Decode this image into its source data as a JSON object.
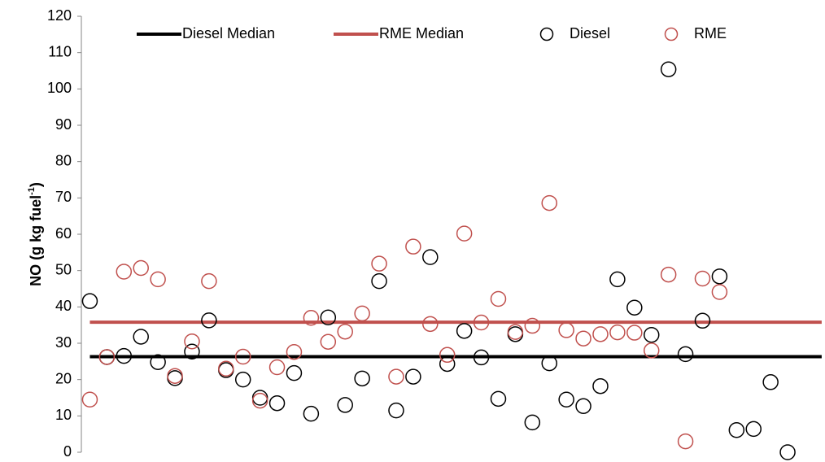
{
  "chart_data": {
    "type": "scatter",
    "ylabel_parts": [
      "NO (g kg fuel",
      "-1",
      ")"
    ],
    "x": [
      1,
      2,
      3,
      4,
      5,
      6,
      7,
      8,
      9,
      10,
      11,
      12,
      13,
      14,
      15,
      16,
      17,
      18,
      19,
      20,
      21,
      22,
      23,
      24,
      25,
      26,
      27,
      28,
      29,
      30,
      31,
      32,
      33,
      34,
      35,
      36,
      37,
      38,
      39,
      40,
      41,
      42
    ],
    "series": [
      {
        "name": "Diesel Median",
        "mode": "line",
        "color": "#000000",
        "x": [
          1,
          44
        ],
        "values": [
          26.3,
          26.3
        ]
      },
      {
        "name": "RME Median",
        "mode": "line",
        "color": "#c0504d",
        "x": [
          1,
          44
        ],
        "values": [
          35.8,
          35.8
        ]
      },
      {
        "name": "Diesel",
        "mode": "markers",
        "color": "#000000",
        "values": [
          41.6,
          26.2,
          26.5,
          31.8,
          24.8,
          20.4,
          27.7,
          36.3,
          22.6,
          20,
          15,
          13.5,
          21.8,
          10.6,
          37.1,
          13,
          20.3,
          47.1,
          11.5,
          20.8,
          53.7,
          24.3,
          33.4,
          26.1,
          14.7,
          32.5,
          8.2,
          24.5,
          14.5,
          12.7,
          18.2,
          47.6,
          39.8,
          32.3,
          105.4,
          27,
          36.2,
          48.4,
          6.1,
          6.4,
          19.3,
          0
        ]
      },
      {
        "name": "RME",
        "mode": "markers",
        "color": "#c0504d",
        "values": [
          14.5,
          26.2,
          49.7,
          50.7,
          47.6,
          21,
          30.5,
          47.1,
          23,
          26.3,
          14.2,
          23.4,
          27.6,
          37,
          30.4,
          33.2,
          38.2,
          51.9,
          20.8,
          56.6,
          35.3,
          26.8,
          60.2,
          35.7,
          42.2,
          33.1,
          34.8,
          68.6,
          33.6,
          31.3,
          32.5,
          33,
          32.9,
          28,
          48.9,
          3,
          47.8,
          44.1,
          null,
          null,
          null,
          null
        ]
      }
    ],
    "xlim": [
      0.5,
      44.1
    ],
    "ylim": [
      0,
      120
    ],
    "yticks": [
      0,
      10,
      20,
      30,
      40,
      50,
      60,
      70,
      80,
      90,
      100,
      110,
      120
    ],
    "grid": false,
    "legend": "top"
  }
}
